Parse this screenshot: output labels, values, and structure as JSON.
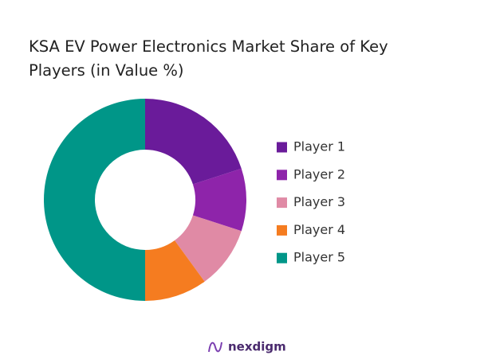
{
  "chart_data": {
    "type": "pie",
    "title": "KSA EV Power Electronics Market Share of Key Players (in Value %)",
    "categories": [
      "Player 1",
      "Player 2",
      "Player 3",
      "Player 4",
      "Player 5"
    ],
    "values": [
      20,
      10,
      10,
      10,
      50
    ],
    "colors": [
      "#6a1b9a",
      "#8e24aa",
      "#e08aa5",
      "#f57c20",
      "#009688"
    ],
    "legend": "right"
  },
  "brand": "nexdigm"
}
